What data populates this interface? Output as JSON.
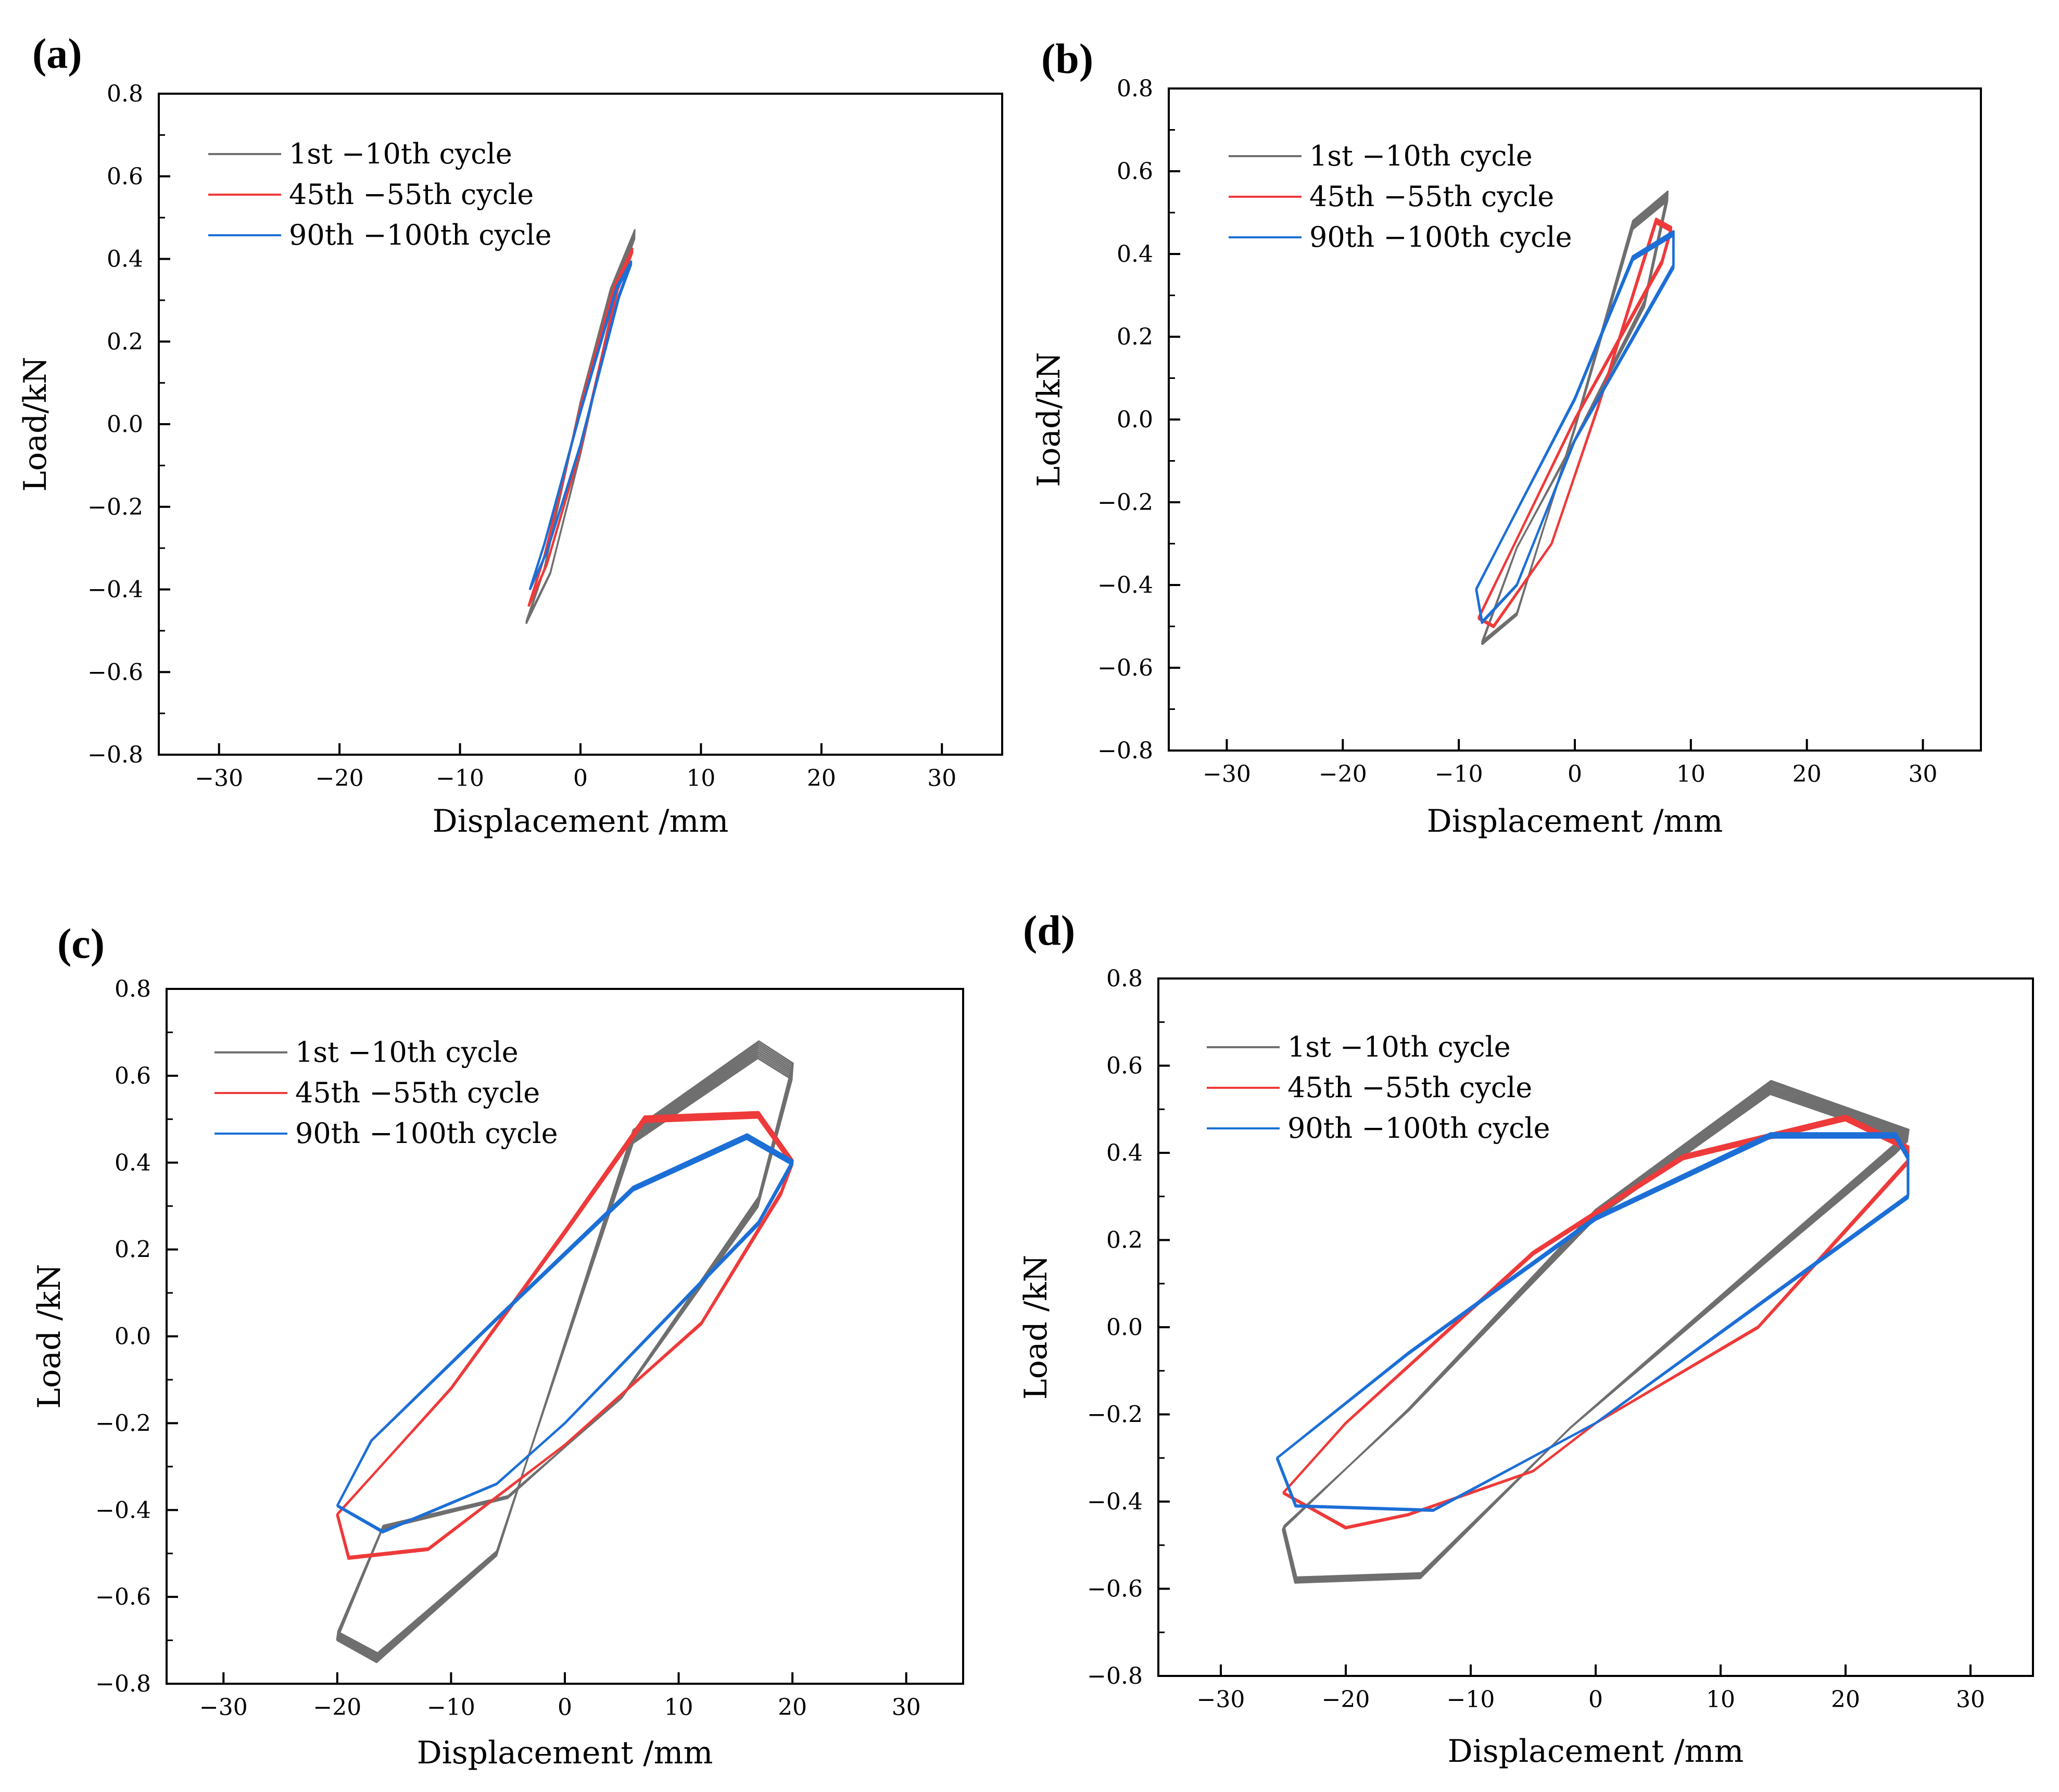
{
  "figure": {
    "colors": {
      "gray": "#6f6f6f",
      "red": "#ee3a3a",
      "blue": "#1c6fd6",
      "axis": "#000000"
    }
  },
  "chart_data": [
    {
      "panel": "(a)",
      "type": "line",
      "title": "",
      "xlabel": "Displacement /mm",
      "ylabel": "Load/kN",
      "xlim": [
        -35,
        35
      ],
      "ylim": [
        -0.8,
        0.8
      ],
      "xticks": [
        -30,
        -20,
        -10,
        0,
        10,
        20,
        30
      ],
      "yticks": [
        -0.8,
        -0.6,
        -0.4,
        -0.2,
        0.0,
        0.2,
        0.4,
        0.6,
        0.8
      ],
      "ytick_labels": [
        "−0.8",
        "−0.6",
        "−0.4",
        "−0.2",
        "0.0",
        "0.2",
        "0.4",
        "0.6",
        "0.8"
      ],
      "xtick_labels": [
        "−30",
        "−20",
        "−10",
        "0",
        "10",
        "20",
        "30"
      ],
      "legend_position": "top-left",
      "series": [
        {
          "name": "1st −10th  cycle",
          "color_key": "gray",
          "repeats": 5,
          "jitter": 0.012,
          "x": [
            -4.5,
            -3.0,
            0.0,
            2.5,
            4.5,
            3.2,
            0.0,
            -2.5,
            -4.5
          ],
          "y": [
            -0.48,
            -0.35,
            0.05,
            0.32,
            0.46,
            0.35,
            -0.07,
            -0.36,
            -0.48
          ]
        },
        {
          "name": "45th −55th  cycle",
          "color_key": "red",
          "repeats": 4,
          "jitter": 0.006,
          "x": [
            -4.3,
            -3.0,
            0.0,
            2.8,
            4.3,
            3.1,
            0.0,
            -2.8,
            -4.3
          ],
          "y": [
            -0.44,
            -0.32,
            0.04,
            0.33,
            0.42,
            0.33,
            -0.06,
            -0.34,
            -0.44
          ]
        },
        {
          "name": "90th −100th  cycle",
          "color_key": "blue",
          "repeats": 4,
          "jitter": 0.005,
          "x": [
            -4.2,
            -3.0,
            0.0,
            3.0,
            4.2,
            3.2,
            0.0,
            -2.8,
            -4.2
          ],
          "y": [
            -0.4,
            -0.29,
            0.03,
            0.33,
            0.39,
            0.31,
            -0.05,
            -0.31,
            -0.4
          ]
        }
      ]
    },
    {
      "panel": "(b)",
      "type": "line",
      "title": "",
      "xlabel": "Displacement /mm",
      "ylabel": "Load/kN",
      "xlim": [
        -35,
        35
      ],
      "ylim": [
        -0.8,
        0.8
      ],
      "xticks": [
        -30,
        -20,
        -10,
        0,
        10,
        20,
        30
      ],
      "yticks": [
        -0.8,
        -0.6,
        -0.4,
        -0.2,
        0.0,
        0.2,
        0.4,
        0.6,
        0.8
      ],
      "ytick_labels": [
        "−0.8",
        "−0.6",
        "−0.4",
        "−0.2",
        "0.0",
        "0.2",
        "0.4",
        "0.6",
        "0.8"
      ],
      "xtick_labels": [
        "−30",
        "−20",
        "−10",
        "0",
        "10",
        "20",
        "30"
      ],
      "legend_position": "top-left",
      "series": [
        {
          "name": "1st −10th cycle",
          "color_key": "gray",
          "repeats": 6,
          "jitter": 0.012,
          "x": [
            -8.0,
            -5.0,
            0.0,
            5.0,
            8.0,
            6.0,
            0.0,
            -5.0,
            -8.0
          ],
          "y": [
            -0.54,
            -0.47,
            -0.02,
            0.47,
            0.54,
            0.28,
            -0.05,
            -0.31,
            -0.54
          ]
        },
        {
          "name": "45th −55th cycle",
          "color_key": "red",
          "repeats": 4,
          "jitter": 0.006,
          "x": [
            -8.3,
            -7.0,
            -2.0,
            2.0,
            7.0,
            8.3,
            7.5,
            0.0,
            -8.3
          ],
          "y": [
            -0.48,
            -0.5,
            -0.3,
            0.03,
            0.48,
            0.46,
            0.38,
            0.0,
            -0.48
          ]
        },
        {
          "name": "90th −100th cycle",
          "color_key": "blue",
          "repeats": 4,
          "jitter": 0.006,
          "x": [
            -8.5,
            -8.0,
            -5.0,
            0.0,
            8.5,
            8.5,
            5.0,
            0.0,
            -5.0,
            -8.5
          ],
          "y": [
            -0.41,
            -0.49,
            -0.4,
            -0.05,
            0.37,
            0.45,
            0.39,
            0.05,
            -0.22,
            -0.41
          ]
        }
      ]
    },
    {
      "panel": "(c)",
      "type": "line",
      "title": "",
      "xlabel": "Displacement /mm",
      "ylabel": "Load /kN",
      "xlim": [
        -35,
        35
      ],
      "ylim": [
        -0.8,
        0.8
      ],
      "xticks": [
        -30,
        -20,
        -10,
        0,
        10,
        20,
        30
      ],
      "yticks": [
        -0.8,
        -0.6,
        -0.4,
        -0.2,
        0.0,
        0.2,
        0.4,
        0.6,
        0.8
      ],
      "ytick_labels": [
        "−0.8",
        "−0.6",
        "−0.4",
        "−0.2",
        "0.0",
        "0.2",
        "0.4",
        "0.6",
        "0.8"
      ],
      "xtick_labels": [
        "−30",
        "−20",
        "−10",
        "0",
        "10",
        "20",
        "30"
      ],
      "legend_position": "top-left",
      "series": [
        {
          "name": "1st −10th cycle",
          "color_key": "gray",
          "repeats": 9,
          "jitter": 0.018,
          "x": [
            -20.0,
            -16.5,
            -6.0,
            6.0,
            17.0,
            20.0,
            17.0,
            5.0,
            -5.0,
            -16.0,
            -20.0
          ],
          "y": [
            -0.69,
            -0.74,
            -0.5,
            0.46,
            0.66,
            0.61,
            0.31,
            -0.14,
            -0.37,
            -0.44,
            -0.69
          ]
        },
        {
          "name": "45th −55th cycle",
          "color_key": "red",
          "repeats": 5,
          "jitter": 0.007,
          "x": [
            -20.0,
            -19.0,
            -12.0,
            0.0,
            12.0,
            19.0,
            20.0,
            17.0,
            7.0,
            0.0,
            -10.0,
            -20.0
          ],
          "y": [
            -0.41,
            -0.51,
            -0.49,
            -0.25,
            0.03,
            0.33,
            0.4,
            0.51,
            0.5,
            0.24,
            -0.12,
            -0.41
          ]
        },
        {
          "name": "90th −100th cycle",
          "color_key": "blue",
          "repeats": 5,
          "jitter": 0.006,
          "x": [
            -20.0,
            -16.0,
            -6.0,
            0.0,
            17.0,
            20.0,
            16.0,
            6.0,
            -6.0,
            -17.0,
            -20.0
          ],
          "y": [
            -0.39,
            -0.45,
            -0.34,
            -0.2,
            0.26,
            0.4,
            0.46,
            0.34,
            0.04,
            -0.24,
            -0.39
          ]
        }
      ]
    },
    {
      "panel": "(d)",
      "type": "line",
      "title": "",
      "xlabel": "Displacement /mm",
      "ylabel": "Load /kN",
      "xlim": [
        -35,
        35
      ],
      "ylim": [
        -0.8,
        0.8
      ],
      "xticks": [
        -30,
        -20,
        -10,
        0,
        10,
        20,
        30
      ],
      "yticks": [
        -0.8,
        -0.6,
        -0.4,
        -0.2,
        0.0,
        0.2,
        0.4,
        0.6,
        0.8
      ],
      "ytick_labels": [
        "−0.8",
        "−0.6",
        "−0.4",
        "−0.2",
        "0.0",
        "0.2",
        "0.4",
        "0.6",
        "0.8"
      ],
      "xtick_labels": [
        "−30",
        "−20",
        "−10",
        "0",
        "10",
        "20",
        "30"
      ],
      "legend_position": "top-left",
      "series": [
        {
          "name": "1st −10th cycle",
          "color_key": "gray",
          "repeats": 9,
          "jitter": 0.016,
          "x": [
            -25.0,
            -24.0,
            -14.0,
            -2.0,
            15.0,
            24.0,
            25.0,
            14.0,
            0.0,
            -15.0,
            -25.0
          ],
          "y": [
            -0.46,
            -0.58,
            -0.57,
            -0.23,
            0.19,
            0.41,
            0.44,
            0.55,
            0.26,
            -0.19,
            -0.46
          ]
        },
        {
          "name": "45th −55th cycle",
          "color_key": "red",
          "repeats": 5,
          "jitter": 0.006,
          "x": [
            -25.0,
            -20.0,
            -15.0,
            -5.0,
            0.0,
            13.0,
            25.0,
            25.0,
            20.0,
            7.0,
            -5.0,
            -20.0,
            -25.0
          ],
          "y": [
            -0.38,
            -0.46,
            -0.43,
            -0.33,
            -0.22,
            0.0,
            0.38,
            0.41,
            0.48,
            0.39,
            0.17,
            -0.22,
            -0.38
          ]
        },
        {
          "name": "90th −100th cycle",
          "color_key": "blue",
          "repeats": 5,
          "jitter": 0.006,
          "x": [
            -25.5,
            -24.0,
            -13.0,
            0.0,
            25.0,
            25.0,
            24.0,
            14.0,
            0.0,
            -15.0,
            -25.5
          ],
          "y": [
            -0.3,
            -0.41,
            -0.42,
            -0.22,
            0.3,
            0.39,
            0.44,
            0.44,
            0.25,
            -0.06,
            -0.3
          ]
        }
      ]
    }
  ]
}
